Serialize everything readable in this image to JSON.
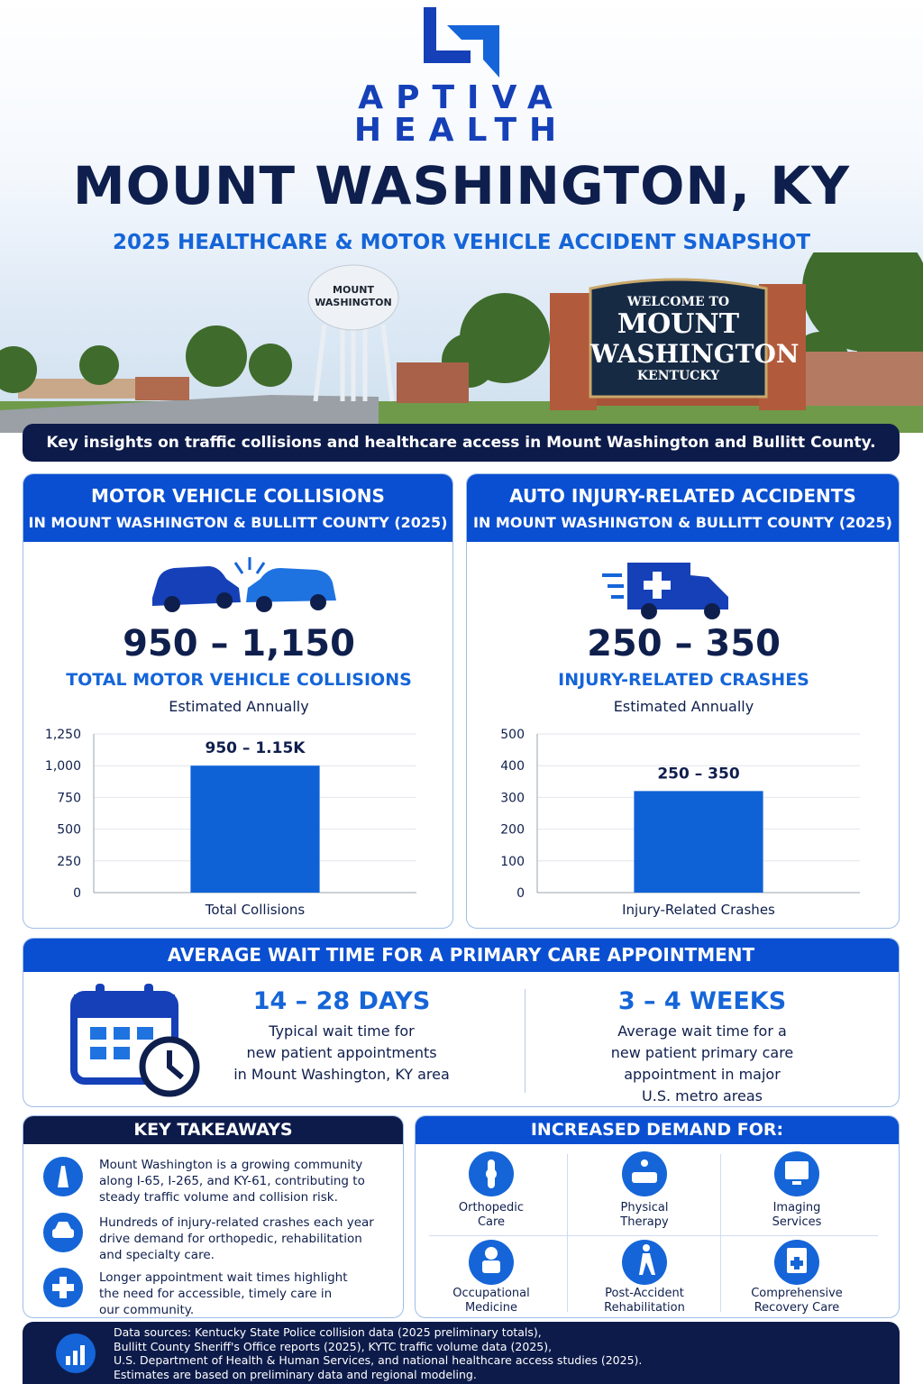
{
  "header": {
    "logo_line1": "APTIVA",
    "logo_line2": "HEALTH",
    "title": "MOUNT WASHINGTON, KY",
    "subtitle": "2025 HEALTHCARE & MOTOR VEHICLE ACCIDENT SNAPSHOT",
    "tower_text": [
      "MOUNT",
      "WASHINGTON"
    ],
    "sign": [
      "WELCOME TO",
      "MOUNT",
      "WASHINGTON",
      "KENTUCKY"
    ],
    "banner": "Key insights on traffic collisions and healthcare access in Mount Washington and Bullitt County."
  },
  "panels": [
    {
      "title_line1": "MOTOR VEHICLE COLLISIONS",
      "title_line2": "IN MOUNT WASHINGTON & BULLITT COUNTY (2025)",
      "range": "950 – 1,150",
      "label": "TOTAL MOTOR VEHICLE COLLISIONS",
      "note": "Estimated Annually"
    },
    {
      "title_line1": "AUTO INJURY-RELATED ACCIDENTS",
      "title_line2": "IN MOUNT WASHINGTON & BULLITT COUNTY (2025)",
      "range": "250 – 350",
      "label": "INJURY-RELATED CRASHES",
      "note": "Estimated Annually"
    }
  ],
  "chart_data": [
    {
      "type": "bar",
      "categories": [
        "Total Collisions"
      ],
      "values": [
        1000
      ],
      "value_labels": [
        "950 – 1.15K"
      ],
      "color": "#0f62d6",
      "ylim": [
        0,
        1250
      ],
      "yticks": [
        0,
        250,
        500,
        750,
        {
          "value": 1000,
          "label": "1,000"
        },
        {
          "value": 1250,
          "label": "1,250"
        }
      ],
      "grid": true
    },
    {
      "type": "bar",
      "categories": [
        "Injury-Related Crashes"
      ],
      "values": [
        320
      ],
      "value_labels": [
        "250 – 350"
      ],
      "color": "#0f62d6",
      "ylim": [
        0,
        500
      ],
      "yticks": [
        0,
        100,
        200,
        300,
        400,
        500
      ],
      "grid": true
    }
  ],
  "wait": {
    "title": "AVERAGE WAIT TIME FOR A PRIMARY CARE APPOINTMENT",
    "items": [
      {
        "value": "14 – 28 DAYS",
        "text": [
          "Typical wait time for",
          "new patient appointments",
          "in Mount Washington, KY area"
        ]
      },
      {
        "value": "3 – 4 WEEKS",
        "text": [
          "Average wait time for a",
          "new patient primary care",
          "appointment in major",
          "U.S. metro areas"
        ]
      }
    ]
  },
  "takeaways": {
    "title": "KEY TAKEAWAYS",
    "items": [
      [
        "Mount Washington is a growing community",
        "along I-65, I-265, and KY-61, contributing to",
        "steady traffic volume and collision risk."
      ],
      [
        "Hundreds of injury-related crashes each year",
        "drive demand for orthopedic, rehabilitation",
        "and specialty care."
      ],
      [
        "Longer appointment wait times highlight",
        "the need for accessible, timely care in",
        "our community."
      ]
    ]
  },
  "demand": {
    "title": "INCREASED DEMAND FOR:",
    "items": [
      [
        "Orthopedic",
        "Care"
      ],
      [
        "Physical",
        "Therapy"
      ],
      [
        "Imaging",
        "Services"
      ],
      [
        "Occupational",
        "Medicine"
      ],
      [
        "Post-Accident",
        "Rehabilitation"
      ],
      [
        "Comprehensive",
        "Recovery Care"
      ]
    ]
  },
  "sources": [
    "Data sources: Kentucky State Police collision data (2025 preliminary totals),",
    "Bullitt County Sheriff's Office reports (2025), KYTC traffic volume data (2025),",
    "U.S. Department of Health & Human Services, and national healthcare access studies (2025).",
    "Estimates are based on preliminary data and regional modeling."
  ]
}
